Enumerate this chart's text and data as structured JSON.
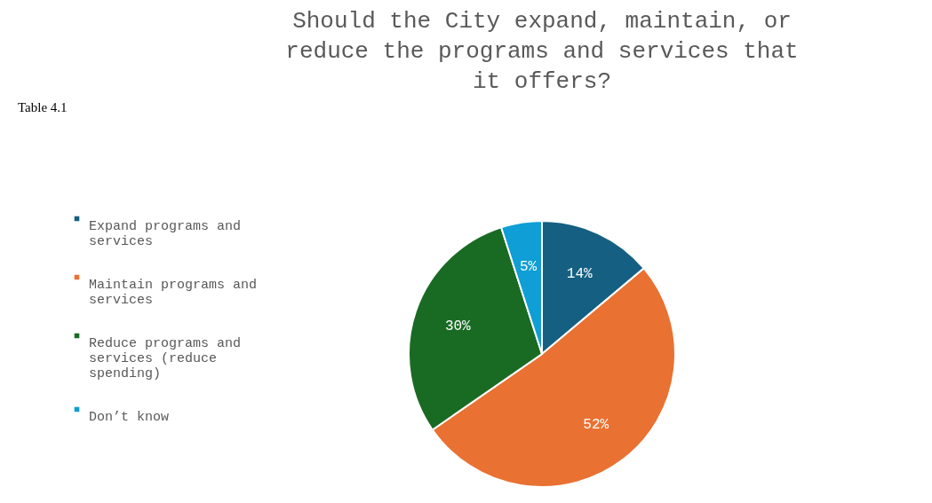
{
  "chart_data": {
    "type": "pie",
    "title": "Should the City expand, maintain, or reduce the programs and services that it offers?",
    "categories": [
      "Expand programs and services",
      "Maintain programs and services",
      "Reduce programs and services (reduce spending)",
      "Don’t know"
    ],
    "values": [
      14,
      52,
      30,
      5
    ],
    "colors": [
      "#156082",
      "#e97132",
      "#196b24",
      "#0f9ed5"
    ],
    "value_labels": [
      "14%",
      "52%",
      "30%",
      "5%"
    ],
    "legend": "left",
    "annotations": [
      "Table 4.1"
    ]
  }
}
